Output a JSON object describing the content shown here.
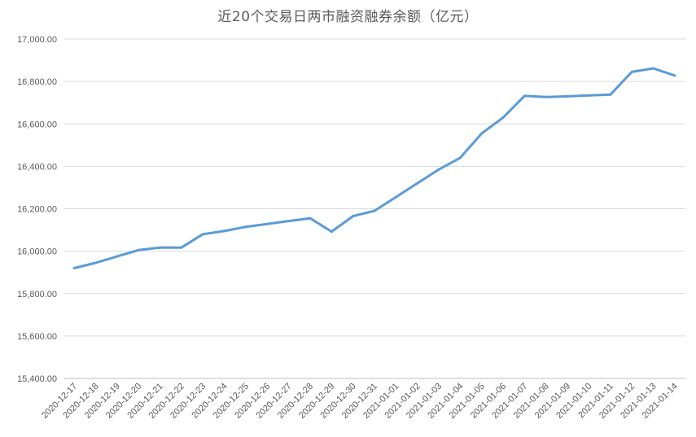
{
  "chart_data": {
    "type": "line",
    "title": "近20个交易日两市融资融券余额（亿元）",
    "xlabel": "",
    "ylabel": "",
    "ylim": [
      15400,
      17000
    ],
    "ytick_step": 200,
    "ytick_labels": [
      "15,400.00",
      "15,600.00",
      "15,800.00",
      "16,000.00",
      "16,200.00",
      "16,400.00",
      "16,600.00",
      "16,800.00",
      "17,000.00"
    ],
    "grid": true,
    "legend": "none",
    "line_color": "#5b9bd5",
    "categories": [
      "2020-12-17",
      "2020-12-18",
      "2020-12-19",
      "2020-12-20",
      "2020-12-21",
      "2020-12-22",
      "2020-12-23",
      "2020-12-24",
      "2020-12-25",
      "2020-12-26",
      "2020-12-27",
      "2020-12-28",
      "2020-12-29",
      "2020-12-30",
      "2020-12-31",
      "2021-01-01",
      "2021-01-02",
      "2021-01-03",
      "2021-01-04",
      "2021-01-05",
      "2021-01-06",
      "2021-01-07",
      "2021-01-08",
      "2021-01-09",
      "2021-01-10",
      "2021-01-11",
      "2021-01-12",
      "2021-01-13",
      "2021-01-14"
    ],
    "values": [
      15920,
      15945,
      15975,
      16005,
      16017,
      16017,
      16080,
      16095,
      16115,
      16128,
      16142,
      16155,
      16092,
      16165,
      16190,
      16255,
      16320,
      16385,
      16440,
      16555,
      16630,
      16732,
      16727,
      16730,
      16734,
      16738,
      16845,
      16862,
      16828
    ]
  }
}
